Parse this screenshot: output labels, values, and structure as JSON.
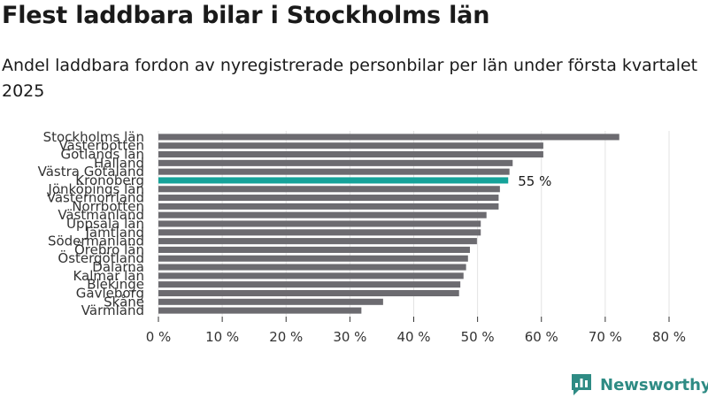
{
  "title": "Flest laddbara bilar i Stockholms län",
  "subtitle": "Andel laddbara fordon av nyregistrerade personbilar per län under första kvartalet 2025",
  "brand": {
    "name": "Newsworthy",
    "color": "#2e8b84",
    "icon": "bar-chart-logo-icon"
  },
  "chart_data": {
    "type": "bar",
    "orientation": "horizontal",
    "categories": [
      "Stockholms län",
      "Västerbotten",
      "Gotlands län",
      "Halland",
      "Västra Götaland",
      "Kronoberg",
      "Jönköpings län",
      "Västernorrland",
      "Norrbotten",
      "Västmanland",
      "Uppsala län",
      "Jämtland",
      "Södermanland",
      "Örebro län",
      "Östergötland",
      "Dalarna",
      "Kalmar län",
      "Blekinge",
      "Gävleborg",
      "Skåne",
      "Värmland"
    ],
    "values": [
      72.2,
      60.3,
      60.3,
      55.5,
      55.0,
      54.8,
      53.5,
      53.3,
      53.3,
      51.4,
      50.5,
      50.5,
      49.9,
      48.8,
      48.5,
      48.2,
      47.8,
      47.3,
      47.1,
      35.2,
      31.8
    ],
    "highlight": {
      "category": "Kronoberg",
      "label": "55 %",
      "color": "#15a39a"
    },
    "bar_color": "#6c6b70",
    "xlim": [
      0,
      80
    ],
    "xticks": [
      "0 %",
      "10 %",
      "20 %",
      "30 %",
      "40 %",
      "50 %",
      "60 %",
      "70 %",
      "80 %"
    ],
    "grid": true,
    "xlabel": "",
    "ylabel": ""
  }
}
